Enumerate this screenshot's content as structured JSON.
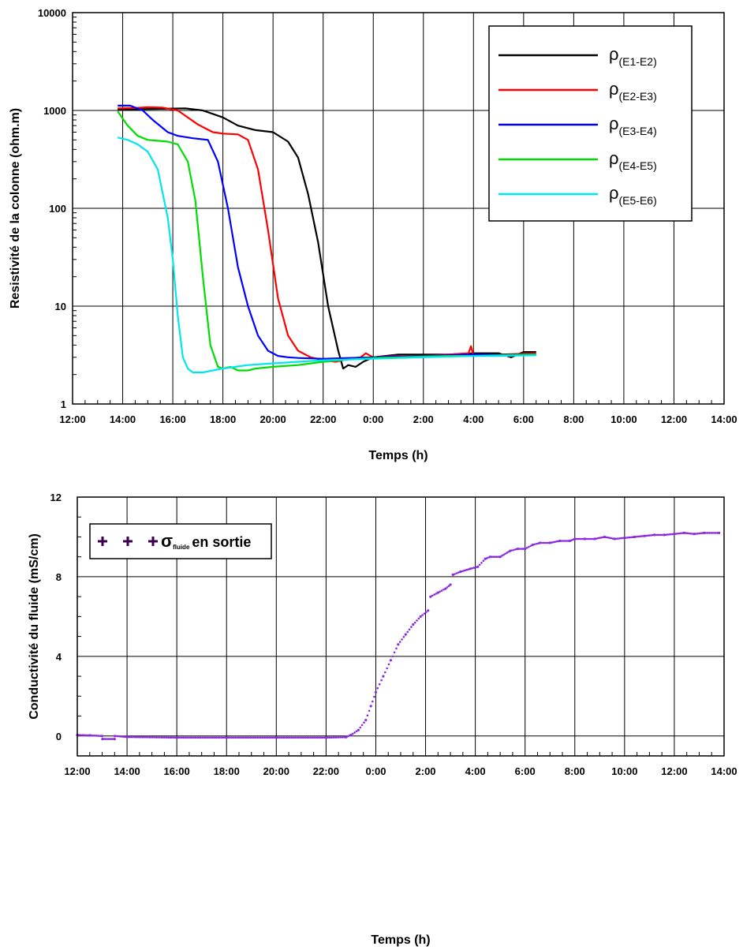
{
  "charts": [
    {
      "type": "line",
      "xlabel": "Temps (h)",
      "ylabel": "Resistivité de la colonne (ohm.m)",
      "yscale": "log",
      "xlim": [
        12,
        38
      ],
      "ylim": [
        1,
        10000
      ],
      "grid": true,
      "legend_position": "top-right",
      "x_tick_labels": [
        "12:00",
        "14:00",
        "16:00",
        "18:00",
        "20:00",
        "22:00",
        "0:00",
        "2:00",
        "4:00",
        "6:00",
        "8:00",
        "10:00",
        "12:00",
        "14:00"
      ],
      "y_tick_labels": [
        "1",
        "10",
        "100",
        "1000",
        "10000"
      ],
      "series": [
        {
          "name": "ρ",
          "sub": "(E1-E2)",
          "color": "#000000",
          "x": [
            13.8,
            14.5,
            15.5,
            16.5,
            17.2,
            18.0,
            18.6,
            19.3,
            20.0,
            20.6,
            21.0,
            21.4,
            21.8,
            22.2,
            22.6,
            22.8,
            23.0,
            23.3,
            23.6,
            24.0,
            24.5,
            25.0,
            26.0,
            27.0,
            28.0,
            29.0,
            29.5,
            30.0,
            30.5
          ],
          "y": [
            1030,
            1030,
            1040,
            1050,
            1000,
            850,
            700,
            630,
            600,
            480,
            330,
            140,
            45,
            10,
            3.5,
            2.3,
            2.5,
            2.4,
            2.7,
            3.0,
            3.1,
            3.2,
            3.2,
            3.2,
            3.3,
            3.3,
            3.0,
            3.4,
            3.4
          ]
        },
        {
          "name": "ρ",
          "sub": "(E2-E3)",
          "color": "#ff0000",
          "x": [
            13.8,
            14.5,
            15.0,
            15.6,
            16.2,
            17.0,
            17.6,
            18.0,
            18.6,
            19.0,
            19.4,
            19.8,
            20.2,
            20.6,
            21.0,
            21.5,
            22.0,
            22.5,
            23.0,
            23.5,
            23.7,
            24.0,
            25.0,
            26.0,
            27.0,
            27.8,
            27.9,
            28.0,
            29.0,
            30.5
          ],
          "y": [
            1050,
            1060,
            1080,
            1070,
            1000,
            720,
            600,
            580,
            570,
            500,
            250,
            60,
            12,
            5,
            3.5,
            3.0,
            2.8,
            2.7,
            2.9,
            3.0,
            3.3,
            3.0,
            3.1,
            3.1,
            3.2,
            3.3,
            3.9,
            3.1,
            3.2,
            3.3
          ]
        },
        {
          "name": "ρ",
          "sub": "(E3-E4)",
          "color": "#0000ff",
          "x": [
            13.8,
            14.3,
            14.8,
            15.2,
            15.8,
            16.2,
            16.8,
            17.4,
            17.8,
            18.2,
            18.6,
            19.0,
            19.4,
            19.8,
            20.2,
            20.6,
            21.0,
            22.0,
            23.0,
            24.0,
            25.0,
            26.0,
            27.0,
            28.0,
            29.0,
            30.5
          ],
          "y": [
            1120,
            1120,
            1000,
            800,
            600,
            550,
            520,
            500,
            300,
            100,
            25,
            10,
            5,
            3.5,
            3.1,
            3.0,
            2.95,
            2.9,
            2.95,
            3.0,
            3.05,
            3.1,
            3.15,
            3.2,
            3.2,
            3.2
          ]
        },
        {
          "name": "ρ",
          "sub": "(E4-E5)",
          "color": "#00dd00",
          "x": [
            13.8,
            14.2,
            14.6,
            15.0,
            15.4,
            15.8,
            16.2,
            16.6,
            16.9,
            17.2,
            17.5,
            17.8,
            18.0,
            18.3,
            18.6,
            19.0,
            19.3,
            20.0,
            21.0,
            22.0,
            23.0,
            24.0,
            25.0,
            26.0,
            27.0,
            28.0,
            29.0,
            30.5
          ],
          "y": [
            980,
            700,
            550,
            500,
            490,
            480,
            450,
            300,
            120,
            20,
            4,
            2.4,
            2.3,
            2.4,
            2.2,
            2.2,
            2.3,
            2.4,
            2.5,
            2.7,
            2.85,
            2.95,
            3.0,
            3.05,
            3.1,
            3.1,
            3.15,
            3.2
          ]
        },
        {
          "name": "ρ",
          "sub": "(E5-E6)",
          "color": "#00e5ee",
          "x": [
            13.8,
            14.2,
            14.6,
            15.0,
            15.4,
            15.8,
            16.0,
            16.2,
            16.4,
            16.6,
            16.8,
            17.2,
            17.6,
            18.0,
            18.5,
            19.0,
            20.0,
            21.0,
            22.0,
            23.0,
            24.0,
            25.0,
            26.0,
            27.0,
            28.0,
            29.0,
            30.5
          ],
          "y": [
            530,
            500,
            450,
            380,
            250,
            80,
            30,
            8,
            3,
            2.3,
            2.1,
            2.1,
            2.2,
            2.3,
            2.4,
            2.5,
            2.6,
            2.7,
            2.8,
            2.85,
            2.9,
            2.95,
            3.0,
            3.05,
            3.1,
            3.1,
            3.15
          ]
        }
      ]
    },
    {
      "type": "scatter",
      "xlabel": "Temps (h)",
      "ylabel": "Conductivité du fluide (mS/cm)",
      "xlim": [
        12,
        38
      ],
      "ylim": [
        -1,
        12
      ],
      "grid": true,
      "legend_position": "top-left",
      "x_tick_labels": [
        "12:00",
        "14:00",
        "16:00",
        "18:00",
        "20:00",
        "22:00",
        "0:00",
        "2:00",
        "4:00",
        "6:00",
        "8:00",
        "10:00",
        "12:00",
        "14:00"
      ],
      "y_tick_labels": [
        "0",
        "4",
        "8",
        "12"
      ],
      "series": [
        {
          "name": "σ",
          "sub": "fluide",
          "suffix": "en sortie",
          "color": "#8a2be2",
          "x": [
            12.0,
            12.5,
            13.0,
            13.01,
            13.5,
            13.51,
            14.0,
            16.0,
            18.0,
            20.0,
            22.0,
            22.8,
            23.0,
            23.3,
            23.6,
            23.8,
            24.0,
            24.3,
            24.6,
            24.9,
            25.2,
            25.5,
            25.8,
            26.1,
            26.2,
            26.5,
            26.8,
            27.0,
            27.1,
            27.4,
            27.8,
            28.1,
            28.4,
            28.6,
            29.0,
            29.4,
            29.7,
            30.0,
            30.3,
            30.6,
            31.0,
            31.4,
            31.8,
            32.0,
            32.4,
            32.8,
            33.2,
            33.6,
            34.0,
            34.4,
            34.8,
            35.2,
            35.6,
            36.0,
            36.4,
            36.8,
            37.2,
            37.8
          ],
          "y": [
            0.05,
            0.03,
            0.0,
            -0.15,
            -0.15,
            0.0,
            -0.05,
            -0.08,
            -0.08,
            -0.08,
            -0.08,
            -0.06,
            0.05,
            0.3,
            0.8,
            1.5,
            2.2,
            3.0,
            3.8,
            4.6,
            5.1,
            5.6,
            6.0,
            6.3,
            7.0,
            7.2,
            7.4,
            7.6,
            8.1,
            8.25,
            8.4,
            8.5,
            8.9,
            9.0,
            9.0,
            9.3,
            9.4,
            9.4,
            9.6,
            9.7,
            9.7,
            9.8,
            9.8,
            9.9,
            9.9,
            9.9,
            10.0,
            9.9,
            9.95,
            10.0,
            10.05,
            10.1,
            10.1,
            10.15,
            10.2,
            10.15,
            10.2,
            10.2
          ]
        }
      ]
    }
  ]
}
